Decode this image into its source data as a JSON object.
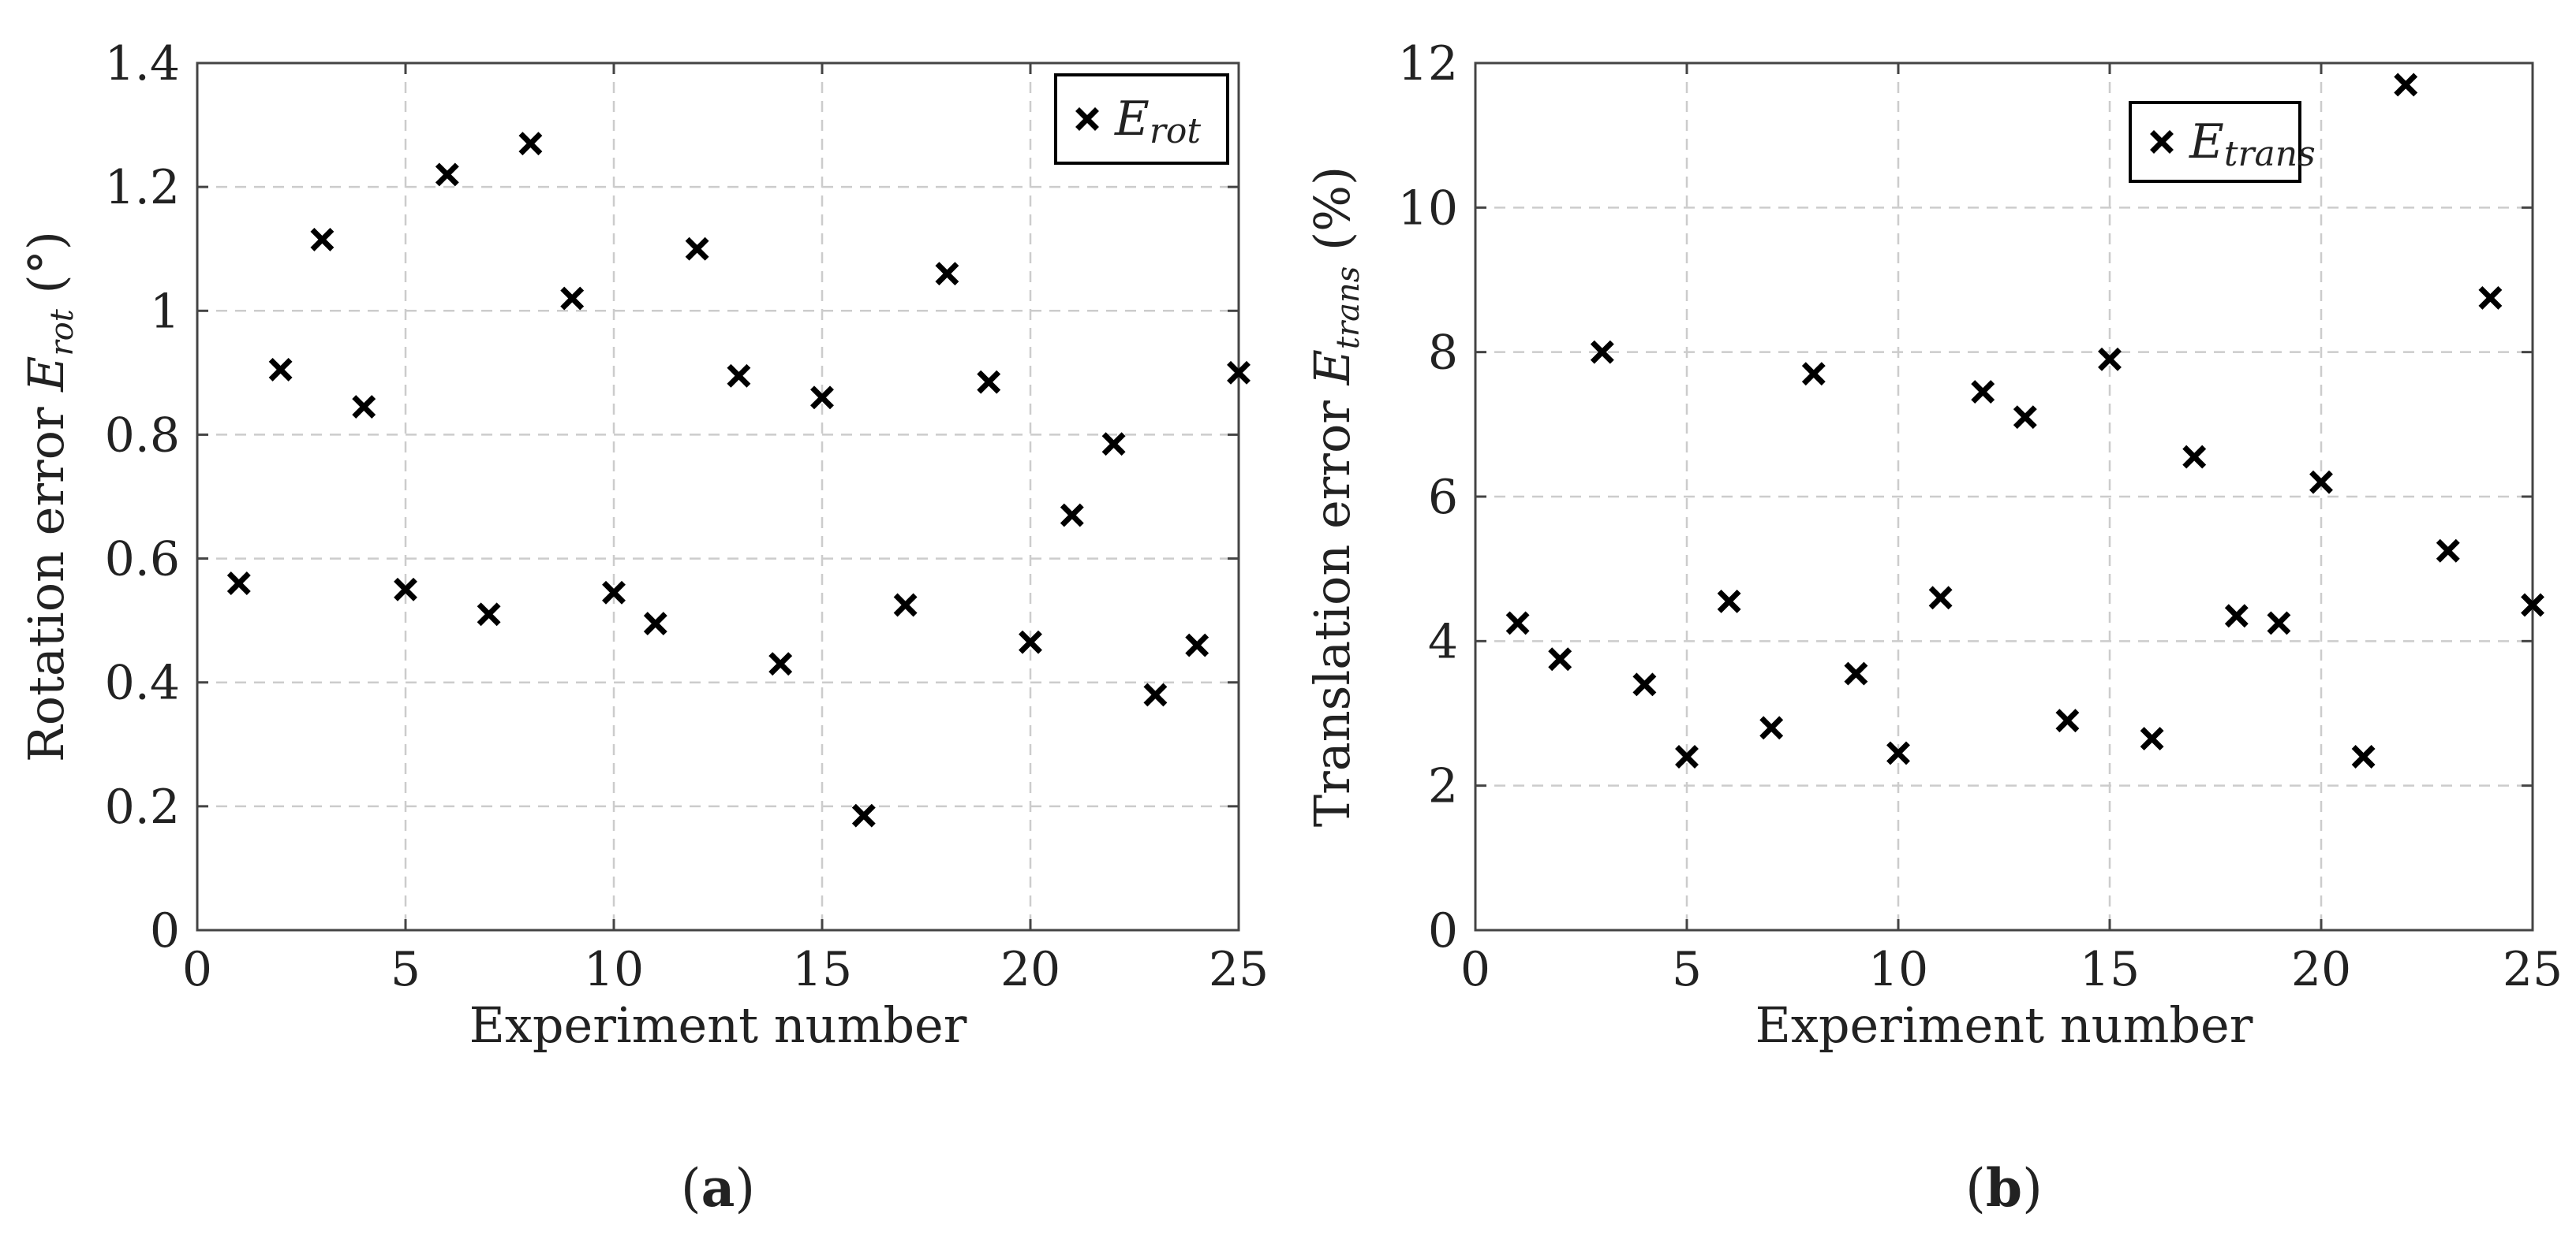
{
  "chart_data": [
    {
      "type": "scatter",
      "panel_label": "(a)",
      "panel_letter": "a",
      "xlabel": "Experiment number",
      "ylabel_prefix": "Rotation error ",
      "ylabel_symbol": "E",
      "ylabel_subscript": "rot",
      "ylabel_suffix": " (°)",
      "xlim": [
        0,
        25
      ],
      "ylim": [
        0,
        1.4
      ],
      "xticks": [
        "0",
        "5",
        "10",
        "15",
        "20",
        "25"
      ],
      "yticks": [
        "0",
        "0.2",
        "0.4",
        "0.6",
        "0.8",
        "1",
        "1.2",
        "1.4"
      ],
      "grid": true,
      "legend_position": "top-right",
      "series": [
        {
          "name_symbol": "E",
          "name_subscript": "rot",
          "marker": "x",
          "color": "#000000",
          "x": [
            1,
            2,
            3,
            4,
            5,
            6,
            7,
            8,
            9,
            10,
            11,
            12,
            13,
            14,
            15,
            16,
            17,
            18,
            19,
            20,
            21,
            22,
            23,
            24,
            25
          ],
          "y": [
            0.56,
            0.905,
            1.115,
            0.845,
            0.55,
            1.22,
            0.51,
            1.27,
            1.02,
            0.545,
            0.495,
            1.1,
            0.895,
            0.43,
            0.86,
            0.185,
            0.525,
            1.06,
            0.885,
            0.465,
            0.67,
            0.785,
            0.38,
            0.46,
            0.9
          ]
        }
      ]
    },
    {
      "type": "scatter",
      "panel_label": "(b)",
      "panel_letter": "b",
      "xlabel": "Experiment number",
      "ylabel_prefix": "Translation error ",
      "ylabel_symbol": "E",
      "ylabel_subscript": "trans",
      "ylabel_suffix": " (%)",
      "xlim": [
        0,
        25
      ],
      "ylim": [
        0,
        12
      ],
      "xticks": [
        "0",
        "5",
        "10",
        "15",
        "20",
        "25"
      ],
      "yticks": [
        "0",
        "2",
        "4",
        "6",
        "8",
        "10",
        "12"
      ],
      "grid": true,
      "legend_position": "top-right",
      "series": [
        {
          "name_symbol": "E",
          "name_subscript": "trans",
          "marker": "x",
          "color": "#000000",
          "x": [
            1,
            2,
            3,
            4,
            5,
            6,
            7,
            8,
            9,
            10,
            11,
            12,
            13,
            14,
            15,
            16,
            17,
            18,
            19,
            20,
            21,
            22,
            23,
            24,
            25
          ],
          "y": [
            4.25,
            3.75,
            8.0,
            3.4,
            2.4,
            4.55,
            2.8,
            7.7,
            3.55,
            2.45,
            4.6,
            7.45,
            7.1,
            2.9,
            7.9,
            2.65,
            6.55,
            4.35,
            4.25,
            6.2,
            2.4,
            11.7,
            5.25,
            8.75,
            4.5
          ]
        }
      ]
    }
  ]
}
